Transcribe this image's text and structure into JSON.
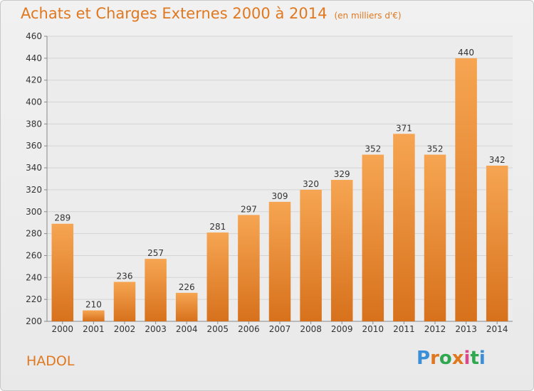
{
  "header": {
    "title": "Achats et Charges Externes 2000 à 2014",
    "unit": "(en milliers d'€)"
  },
  "footer": {
    "commune": "HADOL",
    "logo": "Proxiti",
    "logo_colors": [
      "#3a8fd6",
      "#e0781f",
      "#2fa84f",
      "#e0781f",
      "#d94a8c",
      "#2fa84f",
      "#3a8fd6"
    ]
  },
  "chart_data": {
    "type": "bar",
    "title": "Achats et Charges Externes 2000 à 2014",
    "subtitle": "(en milliers d'€)",
    "xlabel": "",
    "ylabel": "",
    "categories": [
      "2000",
      "2001",
      "2002",
      "2003",
      "2004",
      "2005",
      "2006",
      "2007",
      "2008",
      "2009",
      "2010",
      "2011",
      "2012",
      "2013",
      "2014"
    ],
    "values": [
      289,
      210,
      236,
      257,
      226,
      281,
      297,
      309,
      320,
      329,
      352,
      371,
      352,
      440,
      342
    ],
    "ylim": [
      200,
      460
    ],
    "yticks": [
      200,
      220,
      240,
      260,
      280,
      300,
      320,
      340,
      360,
      380,
      400,
      420,
      440,
      460
    ],
    "grid": true,
    "bar_color_top": "#f6a552",
    "bar_color_bottom": "#d7711c"
  }
}
